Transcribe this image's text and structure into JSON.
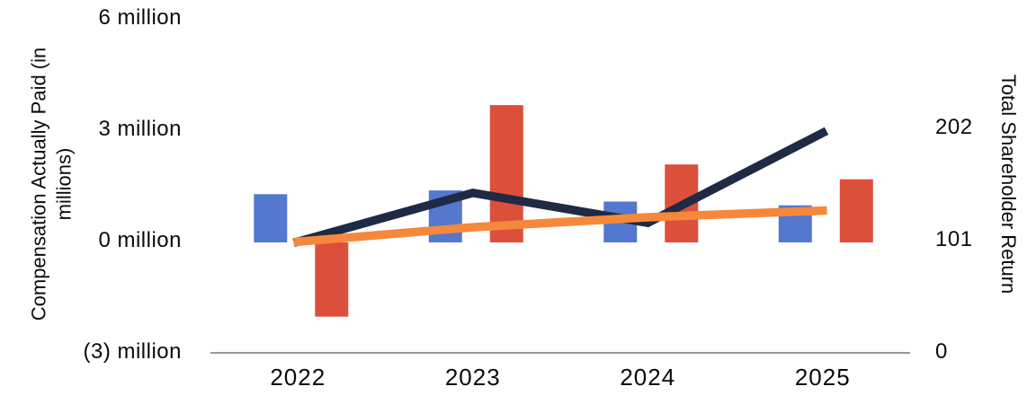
{
  "chart_data": {
    "type": "bar",
    "subtype": "combo-bars-and-lines",
    "categories": [
      "2022",
      "2023",
      "2024",
      "2025"
    ],
    "series": [
      {
        "name": "blue_bars",
        "render": "bar",
        "axis": "left",
        "color": "#5477CF",
        "values": [
          1.3,
          1.4,
          1.1,
          1.0
        ]
      },
      {
        "name": "red_bars",
        "render": "bar",
        "axis": "left",
        "color": "#DC4F3B",
        "values": [
          -2.0,
          3.7,
          2.1,
          1.7
        ]
      },
      {
        "name": "navy_line",
        "render": "line",
        "axis": "right",
        "color": "#1F2A44",
        "values": [
          100,
          144,
          117,
          198
        ]
      },
      {
        "name": "orange_line",
        "render": "line",
        "axis": "right",
        "color": "#F6883B",
        "values": [
          100,
          113,
          122,
          128
        ]
      }
    ],
    "left_axis": {
      "title": "Compensation Actually Paid (in millions)",
      "ticks": [
        {
          "label": "6 million",
          "value": 6
        },
        {
          "label": "3 million",
          "value": 3
        },
        {
          "label": "0 million",
          "value": 0
        },
        {
          "label": "(3) million",
          "value": -3
        }
      ],
      "range": [
        -3,
        6
      ]
    },
    "right_axis": {
      "title": "Total Shareholder Return",
      "ticks": [
        {
          "label": "202",
          "value": 202
        },
        {
          "label": "101",
          "value": 101
        },
        {
          "label": "0",
          "value": 0
        }
      ],
      "range": [
        0,
        202
      ]
    },
    "grid": false,
    "legend": "none",
    "baseline_color": "#999999",
    "background_color": "#ffffff"
  }
}
